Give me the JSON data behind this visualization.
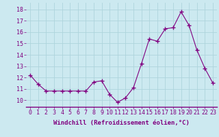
{
  "x": [
    0,
    1,
    2,
    3,
    4,
    5,
    6,
    7,
    8,
    9,
    10,
    11,
    12,
    13,
    14,
    15,
    16,
    17,
    18,
    19,
    20,
    21,
    22,
    23
  ],
  "y": [
    12.2,
    11.4,
    10.8,
    10.8,
    10.8,
    10.8,
    10.8,
    10.8,
    11.6,
    11.7,
    10.5,
    9.8,
    10.2,
    11.1,
    13.2,
    15.4,
    15.2,
    16.3,
    16.4,
    17.8,
    16.6,
    14.4,
    12.8,
    11.5
  ],
  "line_color": "#800080",
  "marker": "+",
  "marker_size": 4,
  "bg_color": "#cce9f0",
  "grid_color": "#aed4dc",
  "xlabel": "Windchill (Refroidissement éolien,°C)",
  "ylabel_ticks": [
    10,
    11,
    12,
    13,
    14,
    15,
    16,
    17,
    18
  ],
  "ylim": [
    9.4,
    18.6
  ],
  "xlim": [
    -0.5,
    23.5
  ],
  "tick_label_color": "#800080",
  "xlabel_color": "#800080",
  "font_family": "monospace",
  "tick_fontsize": 6,
  "xlabel_fontsize": 6.5
}
